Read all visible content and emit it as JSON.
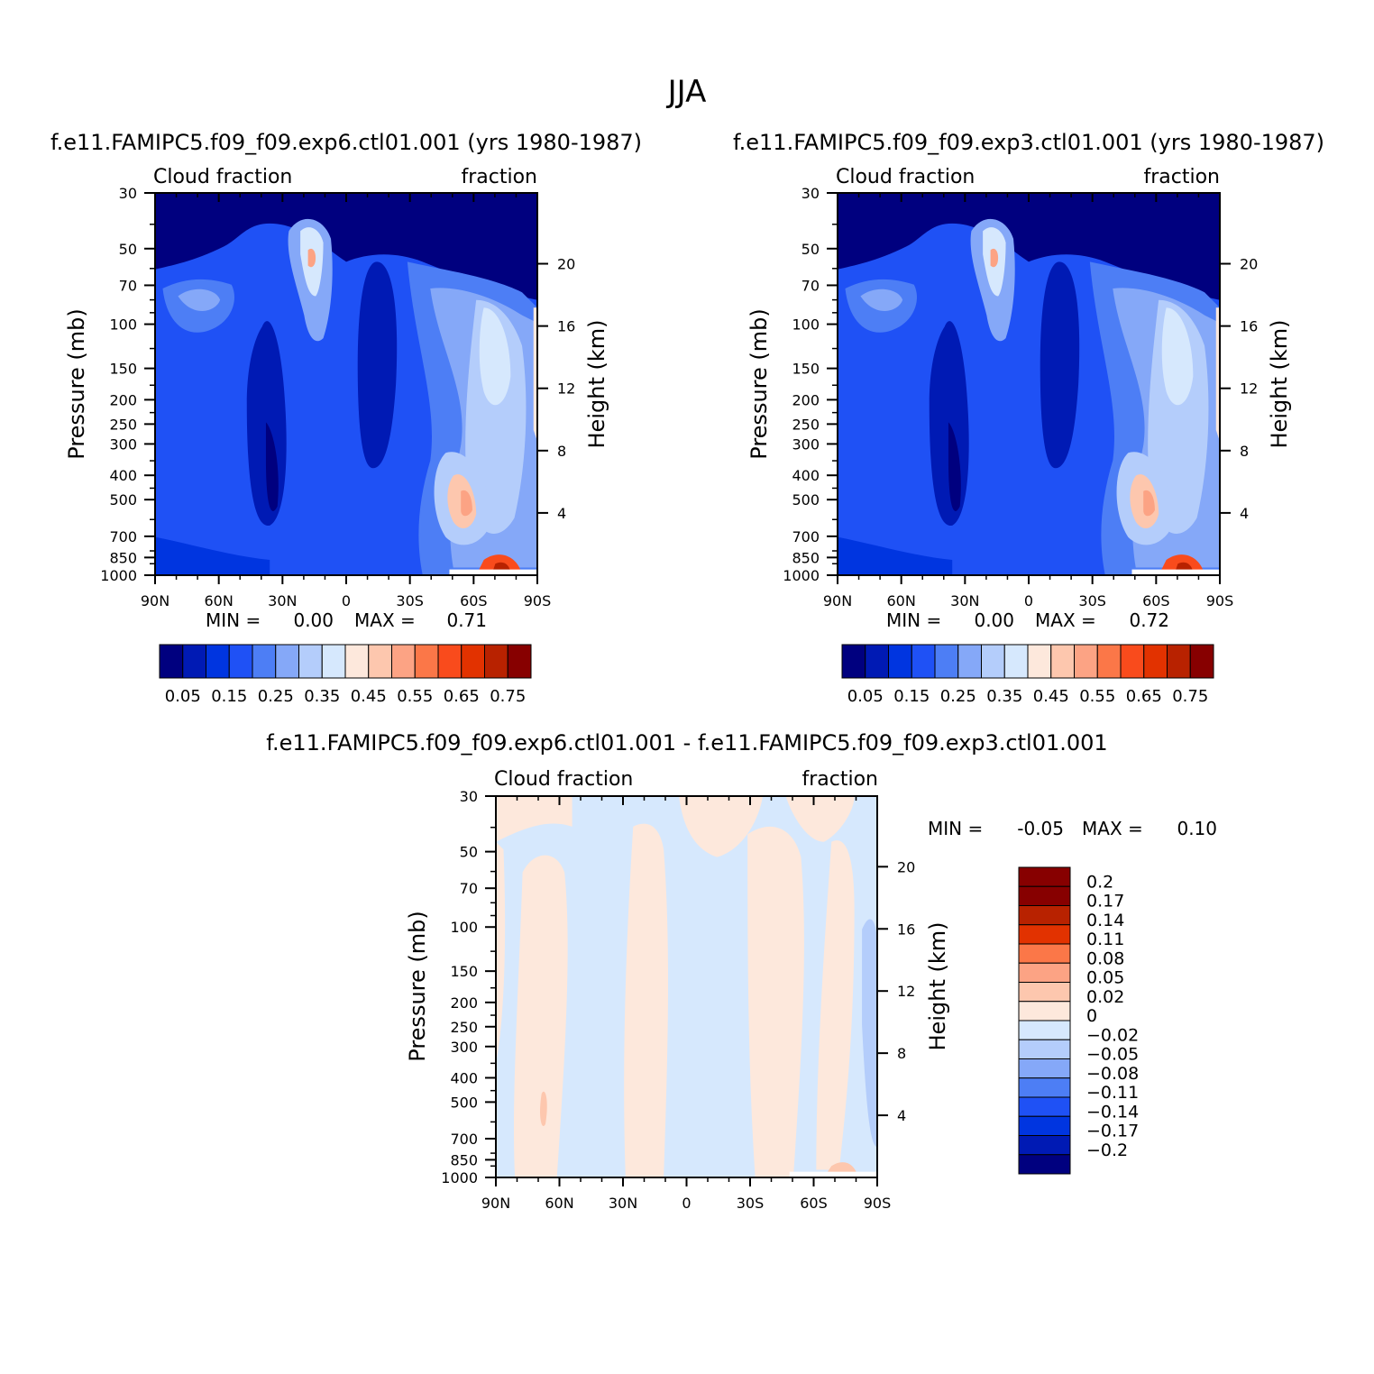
{
  "figure_title": "JJA",
  "chart_data": [
    {
      "type": "contour",
      "title": "f.e11.FAMIPC5.f09_f09.exp6.ctl01.001 (yrs 1980-1987)",
      "left_label": "Cloud fraction",
      "right_label": "fraction",
      "ylabel": "Pressure (mb)",
      "ylabel_right": "Height (km)",
      "x_ticks": [
        "90N",
        "60N",
        "30N",
        "0",
        "30S",
        "60S",
        "90S"
      ],
      "xlim": [
        90,
        -90
      ],
      "y_ticks": [
        "30",
        "50",
        "70",
        "100",
        "150",
        "200",
        "250",
        "300",
        "400",
        "500",
        "700",
        "850",
        "1000"
      ],
      "ylim": [
        1000,
        30
      ],
      "y_scale": "log",
      "height_ticks": [
        "20",
        "16",
        "12",
        "8",
        "4"
      ],
      "min_label": "MIN =",
      "min_value": "0.00",
      "max_label": "MAX =",
      "max_value": "0.71",
      "colorbar": {
        "orientation": "horizontal",
        "labels": [
          "0.05",
          "0.15",
          "0.25",
          "0.35",
          "0.45",
          "0.55",
          "0.65",
          "0.75"
        ],
        "colors": [
          "#00007f",
          "#001ab4",
          "#0035e0",
          "#1f51f5",
          "#4d7ef5",
          "#85a8f8",
          "#b4cdfb",
          "#d6e8fd",
          "#fde8dc",
          "#fdc7ae",
          "#fca384",
          "#fb7748",
          "#f94b1c",
          "#e23200",
          "#b82200",
          "#870000"
        ]
      }
    },
    {
      "type": "contour",
      "title": "f.e11.FAMIPC5.f09_f09.exp3.ctl01.001 (yrs 1980-1987)",
      "left_label": "Cloud fraction",
      "right_label": "fraction",
      "ylabel": "Pressure (mb)",
      "ylabel_right": "Height (km)",
      "x_ticks": [
        "90N",
        "60N",
        "30N",
        "0",
        "30S",
        "60S",
        "90S"
      ],
      "xlim": [
        90,
        -90
      ],
      "y_ticks": [
        "30",
        "50",
        "70",
        "100",
        "150",
        "200",
        "250",
        "300",
        "400",
        "500",
        "700",
        "850",
        "1000"
      ],
      "ylim": [
        1000,
        30
      ],
      "y_scale": "log",
      "height_ticks": [
        "20",
        "16",
        "12",
        "8",
        "4"
      ],
      "min_label": "MIN =",
      "min_value": "0.00",
      "max_label": "MAX =",
      "max_value": "0.72",
      "colorbar": {
        "orientation": "horizontal",
        "labels": [
          "0.05",
          "0.15",
          "0.25",
          "0.35",
          "0.45",
          "0.55",
          "0.65",
          "0.75"
        ],
        "colors": [
          "#00007f",
          "#001ab4",
          "#0035e0",
          "#1f51f5",
          "#4d7ef5",
          "#85a8f8",
          "#b4cdfb",
          "#d6e8fd",
          "#fde8dc",
          "#fdc7ae",
          "#fca384",
          "#fb7748",
          "#f94b1c",
          "#e23200",
          "#b82200",
          "#870000"
        ]
      }
    },
    {
      "type": "contour",
      "title": "f.e11.FAMIPC5.f09_f09.exp6.ctl01.001 - f.e11.FAMIPC5.f09_f09.exp3.ctl01.001",
      "left_label": "Cloud fraction",
      "right_label": "fraction",
      "ylabel": "Pressure (mb)",
      "ylabel_right": "Height (km)",
      "x_ticks": [
        "90N",
        "60N",
        "30N",
        "0",
        "30S",
        "60S",
        "90S"
      ],
      "xlim": [
        90,
        -90
      ],
      "y_ticks": [
        "30",
        "50",
        "70",
        "100",
        "150",
        "200",
        "250",
        "300",
        "400",
        "500",
        "700",
        "850",
        "1000"
      ],
      "ylim": [
        1000,
        30
      ],
      "y_scale": "log",
      "height_ticks": [
        "20",
        "16",
        "12",
        "8",
        "4"
      ],
      "min_label": "MIN =",
      "min_value": "-0.05",
      "max_label": "MAX =",
      "max_value": "0.10",
      "colorbar": {
        "orientation": "vertical",
        "labels": [
          "0.2",
          "0.17",
          "0.14",
          "0.11",
          "0.08",
          "0.05",
          "0.02",
          "0",
          "-0.02",
          "-0.05",
          "-0.08",
          "-0.11",
          "-0.14",
          "-0.17",
          "-0.2"
        ],
        "colors": [
          "#870000",
          "#b82200",
          "#e23200",
          "#fb7748",
          "#fca384",
          "#fdc7ae",
          "#fde8dc",
          "#d6e8fd",
          "#b4cdfb",
          "#85a8f8",
          "#4d7ef5",
          "#1f51f5",
          "#0035e0",
          "#001ab4",
          "#00007f"
        ]
      }
    }
  ]
}
